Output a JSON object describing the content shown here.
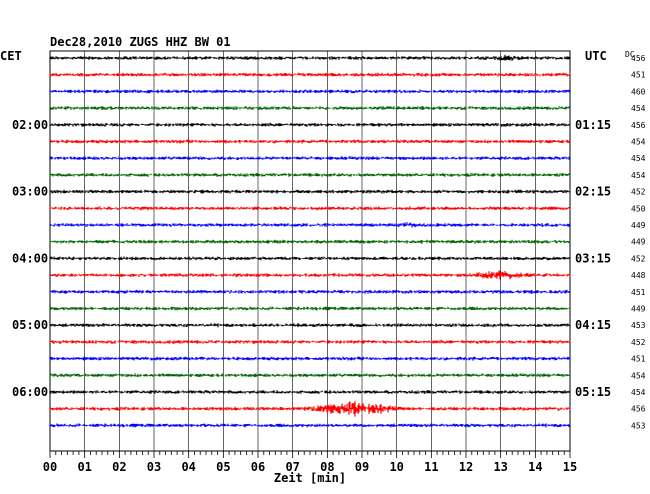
{
  "chart_data": {
    "type": "line",
    "title": "Dec28,2010   ZUGS HHZ BW 01",
    "xlabel": "Zeit [min]",
    "xlim": [
      0,
      15
    ],
    "x_ticks": [
      "00",
      "01",
      "02",
      "03",
      "04",
      "05",
      "06",
      "07",
      "08",
      "09",
      "10",
      "11",
      "12",
      "13",
      "14",
      "15"
    ],
    "left_axis_label": "CET",
    "right_axis_label": "UTC",
    "dc_label": "DC",
    "trace_colors": [
      "#000000",
      "#ff0000",
      "#0000ff",
      "#006400"
    ],
    "hour_labels": [
      {
        "row": 4,
        "cet": "02:00",
        "utc": "01:15"
      },
      {
        "row": 8,
        "cet": "03:00",
        "utc": "02:15"
      },
      {
        "row": 12,
        "cet": "04:00",
        "utc": "03:15"
      },
      {
        "row": 16,
        "cet": "05:00",
        "utc": "04:15"
      },
      {
        "row": 20,
        "cet": "06:00",
        "utc": "05:15"
      }
    ],
    "dc_values": [
      "456",
      "451",
      "460",
      "454",
      "456",
      "454",
      "454",
      "454",
      "452",
      "450",
      "449",
      "449",
      "452",
      "448",
      "451",
      "449",
      "453",
      "452",
      "451",
      "454",
      "454",
      "456",
      "453"
    ],
    "events": [
      {
        "row": 0,
        "start_min": 12.7,
        "end_min": 13.6,
        "amp": 1.4
      },
      {
        "row": 10,
        "start_min": 10.0,
        "end_min": 10.7,
        "amp": 1.6
      },
      {
        "row": 13,
        "start_min": 11.8,
        "end_min": 14.0,
        "amp": 2.6
      },
      {
        "row": 21,
        "start_min": 7.2,
        "end_min": 10.2,
        "amp": 5.0
      }
    ]
  }
}
